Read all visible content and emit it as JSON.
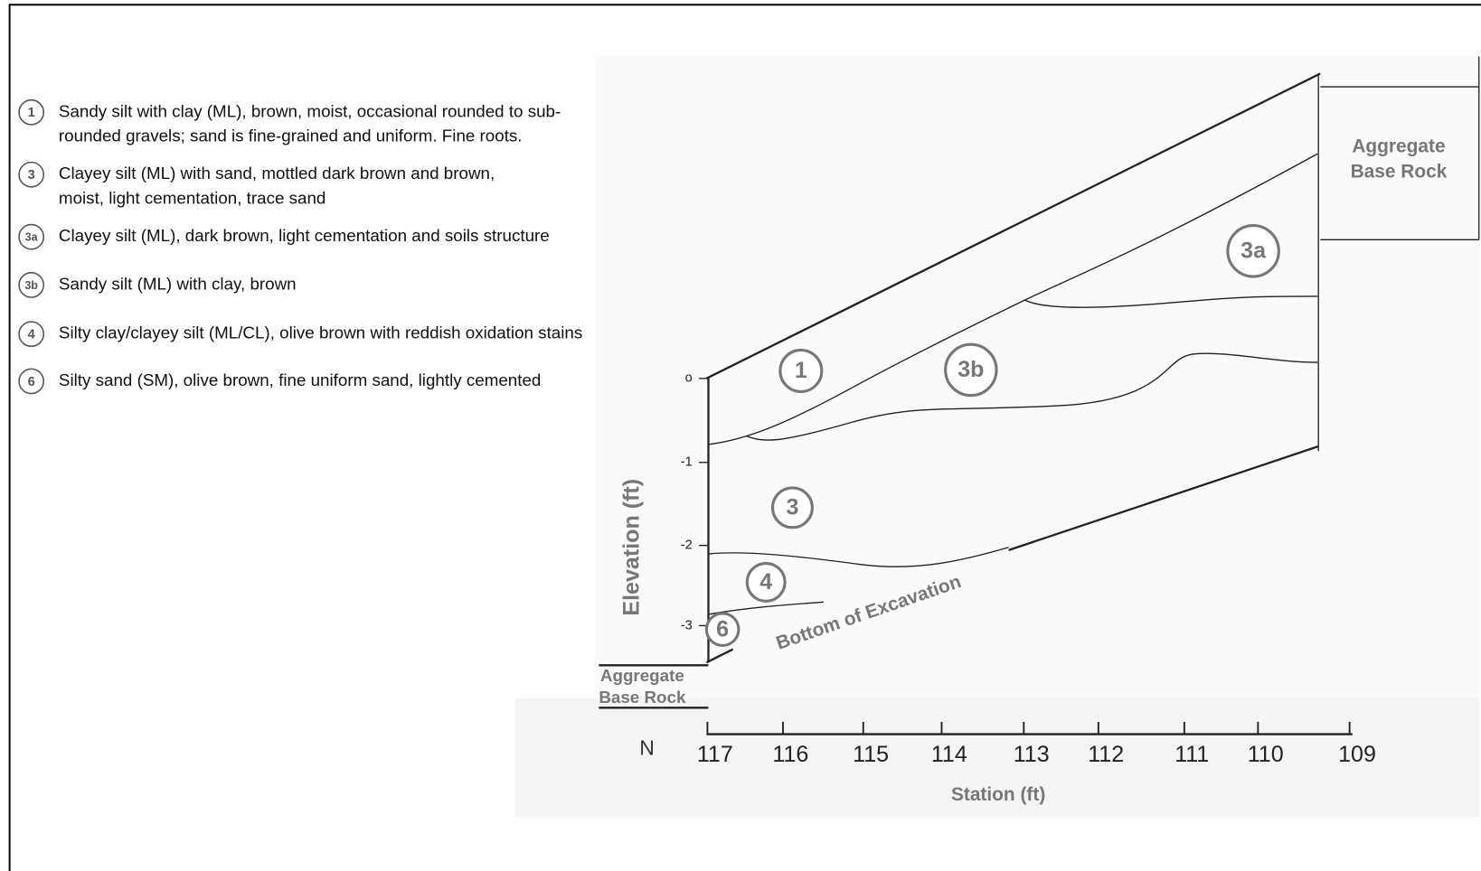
{
  "legend": {
    "items": [
      {
        "symbol": "1",
        "lines": [
          "Sandy silt with clay (ML), brown, moist, occasional rounded to sub-",
          "rounded gravels; sand is fine-grained and uniform. Fine roots."
        ]
      },
      {
        "symbol": "3",
        "lines": [
          "Clayey silt (ML) with sand, mottled dark brown and brown,",
          "moist, light cementation, trace sand"
        ]
      },
      {
        "symbol": "3a",
        "lines": [
          "Clayey silt (ML), dark brown, light cementation and soils structure"
        ]
      },
      {
        "symbol": "3b",
        "lines": [
          "Sandy silt (ML) with clay, brown"
        ]
      },
      {
        "symbol": "4",
        "lines": [
          "Silty clay/clayey silt (ML/CL), olive brown with reddish oxidation stains"
        ]
      },
      {
        "symbol": "6",
        "lines": [
          "Silty sand (SM), olive brown, fine uniform sand, lightly cemented"
        ]
      }
    ]
  },
  "y_axis": {
    "title": "Elevation (ft)",
    "ticks": [
      "o",
      "-1",
      "-2",
      "-3"
    ]
  },
  "x_axis": {
    "title": "Station (ft)",
    "north": "N",
    "ticks": [
      "117",
      "116",
      "115",
      "114",
      "113",
      "112",
      "111",
      "110",
      "109"
    ]
  },
  "layers": [
    "1",
    "3b",
    "3a",
    "3",
    "4",
    "6"
  ],
  "annotations": {
    "right_base": [
      "Aggregate",
      "Base Rock"
    ],
    "left_base": [
      "Aggregate",
      "Base Rock"
    ],
    "excavation": "Bottom of Excavation"
  }
}
